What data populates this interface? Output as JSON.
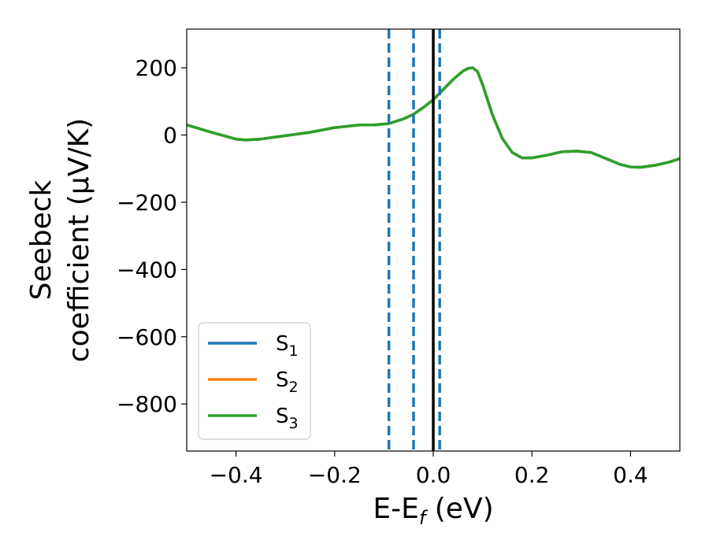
{
  "chart_data": {
    "type": "line",
    "xlabel": "E-E",
    "xlabel_subscript": "f",
    "xlabel_unit": " (eV)",
    "ylabel_line1": "Seebeck",
    "ylabel_line2": "coefficient  (μV/K)",
    "xlim": [
      -0.5,
      0.5
    ],
    "ylim": [
      -940,
      315
    ],
    "xticks": [
      {
        "value": -0.4,
        "label": "−0.4"
      },
      {
        "value": -0.2,
        "label": "−0.2"
      },
      {
        "value": 0.0,
        "label": "0.0"
      },
      {
        "value": 0.2,
        "label": "0.2"
      },
      {
        "value": 0.4,
        "label": "0.4"
      }
    ],
    "yticks": [
      {
        "value": 200,
        "label": "200"
      },
      {
        "value": 0,
        "label": "0"
      },
      {
        "value": -200,
        "label": "−200"
      },
      {
        "value": -400,
        "label": "−400"
      },
      {
        "value": -600,
        "label": "−600"
      },
      {
        "value": -800,
        "label": "−800"
      }
    ],
    "legend_position": "lower-left",
    "grid": false,
    "series": [
      {
        "name": "S",
        "subscript": "1",
        "color": "#1f77b4",
        "x": [
          -0.5,
          -0.45,
          -0.4,
          -0.38,
          -0.35,
          -0.3,
          -0.25,
          -0.2,
          -0.15,
          -0.12,
          -0.09,
          -0.06,
          -0.04,
          -0.02,
          0.0,
          0.02,
          0.04,
          0.06,
          0.07,
          0.08,
          0.09,
          0.1,
          0.12,
          0.14,
          0.16,
          0.18,
          0.2,
          0.23,
          0.26,
          0.29,
          0.32,
          0.35,
          0.38,
          0.4,
          0.42,
          0.45,
          0.48,
          0.5
        ],
        "y": [
          30,
          8,
          -12,
          -15,
          -12,
          -2,
          8,
          22,
          30,
          30,
          34,
          48,
          62,
          82,
          105,
          135,
          165,
          190,
          198,
          200,
          188,
          150,
          60,
          -10,
          -52,
          -68,
          -68,
          -60,
          -50,
          -48,
          -52,
          -70,
          -88,
          -95,
          -96,
          -90,
          -80,
          -70
        ]
      },
      {
        "name": "S",
        "subscript": "2",
        "color": "#ff7f0e",
        "x": [
          -0.5,
          -0.45,
          -0.4,
          -0.38,
          -0.35,
          -0.3,
          -0.25,
          -0.2,
          -0.15,
          -0.12,
          -0.09,
          -0.06,
          -0.04,
          -0.02,
          0.0,
          0.02,
          0.04,
          0.06,
          0.07,
          0.08,
          0.09,
          0.1,
          0.12,
          0.14,
          0.16,
          0.18,
          0.2,
          0.23,
          0.26,
          0.29,
          0.32,
          0.35,
          0.38,
          0.4,
          0.42,
          0.45,
          0.48,
          0.5
        ],
        "y": [
          30,
          8,
          -12,
          -15,
          -12,
          -2,
          8,
          22,
          30,
          30,
          34,
          48,
          62,
          82,
          105,
          135,
          165,
          190,
          198,
          200,
          188,
          150,
          60,
          -10,
          -52,
          -68,
          -68,
          -60,
          -50,
          -48,
          -52,
          -70,
          -88,
          -95,
          -96,
          -90,
          -80,
          -70
        ]
      },
      {
        "name": "S",
        "subscript": "3",
        "color": "#2ca02c",
        "x": [
          -0.5,
          -0.45,
          -0.4,
          -0.38,
          -0.35,
          -0.3,
          -0.25,
          -0.2,
          -0.15,
          -0.12,
          -0.09,
          -0.06,
          -0.04,
          -0.02,
          0.0,
          0.02,
          0.04,
          0.06,
          0.07,
          0.08,
          0.09,
          0.1,
          0.12,
          0.14,
          0.16,
          0.18,
          0.2,
          0.23,
          0.26,
          0.29,
          0.32,
          0.35,
          0.38,
          0.4,
          0.42,
          0.45,
          0.48,
          0.5
        ],
        "y": [
          30,
          8,
          -12,
          -15,
          -12,
          -2,
          8,
          22,
          30,
          30,
          34,
          48,
          62,
          82,
          105,
          135,
          165,
          190,
          198,
          200,
          188,
          150,
          60,
          -10,
          -52,
          -68,
          -68,
          -60,
          -50,
          -48,
          -52,
          -70,
          -88,
          -95,
          -96,
          -90,
          -80,
          -70
        ]
      }
    ],
    "vlines": [
      {
        "x": -0.09,
        "style": "dashed",
        "color": "#1f77b4"
      },
      {
        "x": -0.04,
        "style": "dashed",
        "color": "#1f77b4"
      },
      {
        "x": 0.013,
        "style": "dashed",
        "color": "#1f77b4"
      },
      {
        "x": 0.0,
        "style": "solid",
        "color": "#000000"
      }
    ]
  }
}
